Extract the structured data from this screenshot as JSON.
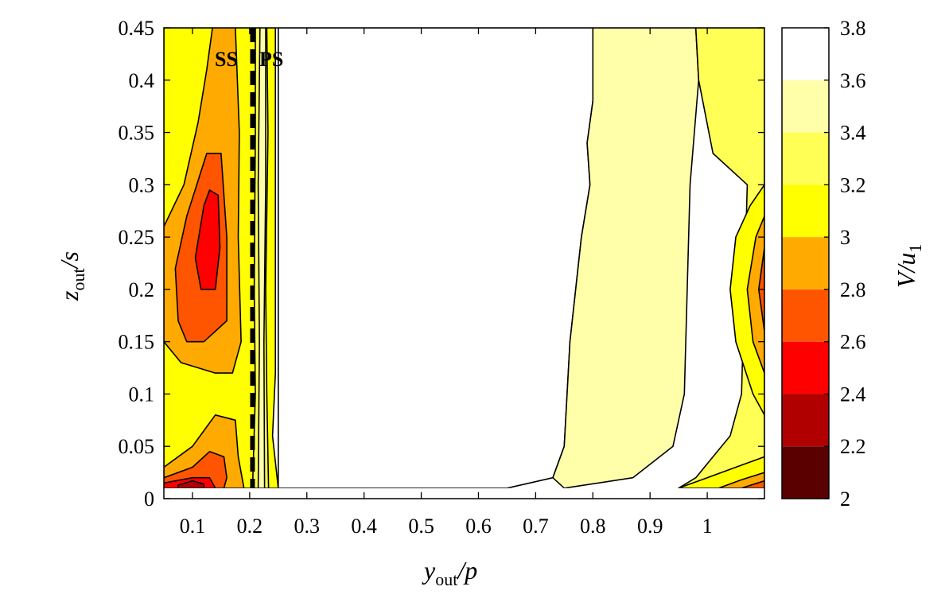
{
  "chart_data": {
    "type": "heatmap",
    "subtype": "filled-contour",
    "title": "",
    "xlabel": {
      "main": "y",
      "sub": "out",
      "rest": "/p"
    },
    "ylabel": {
      "main": "z",
      "sub": "out",
      "rest": "/s"
    },
    "colorbar_label": {
      "main": "V/u",
      "sub": "1"
    },
    "xlim": [
      0.05,
      1.1
    ],
    "ylim": [
      0,
      0.45
    ],
    "x_ticks": [
      "0.1",
      "0.2",
      "0.3",
      "0.4",
      "0.5",
      "0.6",
      "0.7",
      "0.8",
      "0.9",
      "1"
    ],
    "y_ticks": [
      "0",
      "0.05",
      "0.1",
      "0.15",
      "0.2",
      "0.25",
      "0.3",
      "0.35",
      "0.4",
      "0.45"
    ],
    "colorbar_ticks": [
      "2",
      "2.2",
      "2.4",
      "2.6",
      "2.8",
      "3",
      "3.2",
      "3.4",
      "3.6",
      "3.8"
    ],
    "levels": [
      {
        "range": [
          2.0,
          2.2
        ],
        "color": "#5a0000"
      },
      {
        "range": [
          2.2,
          2.4
        ],
        "color": "#b00000"
      },
      {
        "range": [
          2.4,
          2.6
        ],
        "color": "#ff0000"
      },
      {
        "range": [
          2.6,
          2.8
        ],
        "color": "#ff5500"
      },
      {
        "range": [
          2.8,
          3.0
        ],
        "color": "#ffaa00"
      },
      {
        "range": [
          3.0,
          3.2
        ],
        "color": "#ffff00"
      },
      {
        "range": [
          3.2,
          3.4
        ],
        "color": "#ffff55"
      },
      {
        "range": [
          3.4,
          3.6
        ],
        "color": "#ffffaa"
      },
      {
        "range": [
          3.6,
          3.8
        ],
        "color": "#ffffff"
      }
    ],
    "annotations": [
      "SS",
      "PS"
    ],
    "dashed_line": {
      "x": 0.205,
      "style": "dashed"
    },
    "regions": [
      {
        "level": 3.0,
        "points": [
          [
            0.05,
            0.45
          ],
          [
            0.245,
            0.45
          ],
          [
            0.245,
            0.12
          ],
          [
            0.24,
            0.06
          ],
          [
            0.25,
            0.01
          ],
          [
            0.05,
            0.01
          ]
        ]
      },
      {
        "level": 3.2,
        "points": [
          [
            0.21,
            0.45
          ],
          [
            0.23,
            0.45
          ],
          [
            0.232,
            0.35
          ],
          [
            0.228,
            0.2
          ],
          [
            0.23,
            0.1
          ],
          [
            0.233,
            0.01
          ],
          [
            0.205,
            0.01
          ],
          [
            0.21,
            0.1
          ],
          [
            0.208,
            0.2
          ],
          [
            0.21,
            0.35
          ]
        ]
      },
      {
        "level": 3.4,
        "points": [
          [
            0.218,
            0.45
          ],
          [
            0.228,
            0.45
          ],
          [
            0.228,
            0.3
          ],
          [
            0.225,
            0.15
          ],
          [
            0.226,
            0.01
          ],
          [
            0.215,
            0.01
          ],
          [
            0.217,
            0.15
          ],
          [
            0.215,
            0.3
          ]
        ]
      },
      {
        "level": 2.8,
        "points": [
          [
            0.135,
            0.45
          ],
          [
            0.175,
            0.45
          ],
          [
            0.182,
            0.35
          ],
          [
            0.18,
            0.25
          ],
          [
            0.185,
            0.15
          ],
          [
            0.17,
            0.12
          ],
          [
            0.14,
            0.12
          ],
          [
            0.08,
            0.13
          ],
          [
            0.05,
            0.15
          ],
          [
            0.05,
            0.26
          ],
          [
            0.085,
            0.3
          ],
          [
            0.11,
            0.36
          ],
          [
            0.125,
            0.41
          ]
        ]
      },
      {
        "level": 2.6,
        "points": [
          [
            0.125,
            0.33
          ],
          [
            0.15,
            0.33
          ],
          [
            0.16,
            0.25
          ],
          [
            0.16,
            0.17
          ],
          [
            0.12,
            0.15
          ],
          [
            0.09,
            0.15
          ],
          [
            0.075,
            0.17
          ],
          [
            0.07,
            0.22
          ],
          [
            0.09,
            0.27
          ]
        ]
      },
      {
        "level": 2.4,
        "points": [
          [
            0.13,
            0.295
          ],
          [
            0.145,
            0.29
          ],
          [
            0.148,
            0.24
          ],
          [
            0.14,
            0.2
          ],
          [
            0.115,
            0.2
          ],
          [
            0.105,
            0.23
          ],
          [
            0.12,
            0.28
          ]
        ]
      },
      {
        "level": 2.8,
        "points": [
          [
            0.05,
            0.03
          ],
          [
            0.1,
            0.05
          ],
          [
            0.14,
            0.08
          ],
          [
            0.175,
            0.075
          ],
          [
            0.18,
            0.04
          ],
          [
            0.19,
            0.01
          ],
          [
            0.05,
            0.01
          ]
        ]
      },
      {
        "level": 2.6,
        "points": [
          [
            0.05,
            0.02
          ],
          [
            0.1,
            0.03
          ],
          [
            0.13,
            0.045
          ],
          [
            0.155,
            0.04
          ],
          [
            0.16,
            0.02
          ],
          [
            0.155,
            0.01
          ],
          [
            0.05,
            0.01
          ]
        ]
      },
      {
        "level": 2.4,
        "points": [
          [
            0.05,
            0.015
          ],
          [
            0.1,
            0.02
          ],
          [
            0.13,
            0.02
          ],
          [
            0.14,
            0.01
          ],
          [
            0.05,
            0.01
          ]
        ]
      },
      {
        "level": 2.2,
        "points": [
          [
            0.075,
            0.013
          ],
          [
            0.1,
            0.017
          ],
          [
            0.12,
            0.014
          ],
          [
            0.12,
            0.01
          ],
          [
            0.075,
            0.01
          ]
        ]
      },
      {
        "level": 3.6,
        "points": [
          [
            0.25,
            0.45
          ],
          [
            0.8,
            0.45
          ],
          [
            0.8,
            0.38
          ],
          [
            0.79,
            0.34
          ],
          [
            0.795,
            0.3
          ],
          [
            0.78,
            0.25
          ],
          [
            0.77,
            0.2
          ],
          [
            0.76,
            0.15
          ],
          [
            0.755,
            0.1
          ],
          [
            0.75,
            0.05
          ],
          [
            0.73,
            0.02
          ],
          [
            0.65,
            0.01
          ],
          [
            0.25,
            0.01
          ]
        ]
      },
      {
        "level": 3.4,
        "points": [
          [
            0.8,
            0.45
          ],
          [
            0.98,
            0.45
          ],
          [
            0.985,
            0.4
          ],
          [
            0.97,
            0.3
          ],
          [
            0.965,
            0.2
          ],
          [
            0.96,
            0.1
          ],
          [
            0.94,
            0.05
          ],
          [
            0.87,
            0.02
          ],
          [
            0.75,
            0.01
          ],
          [
            0.73,
            0.02
          ],
          [
            0.75,
            0.05
          ],
          [
            0.755,
            0.1
          ],
          [
            0.76,
            0.15
          ],
          [
            0.77,
            0.2
          ],
          [
            0.78,
            0.25
          ],
          [
            0.795,
            0.3
          ],
          [
            0.79,
            0.34
          ],
          [
            0.8,
            0.38
          ]
        ]
      },
      {
        "level": 3.2,
        "points": [
          [
            0.98,
            0.45
          ],
          [
            1.1,
            0.45
          ],
          [
            1.1,
            0.01
          ],
          [
            0.95,
            0.01
          ],
          [
            0.98,
            0.02
          ],
          [
            1.04,
            0.06
          ],
          [
            1.06,
            0.1
          ],
          [
            1.065,
            0.2
          ],
          [
            1.07,
            0.3
          ],
          [
            1.01,
            0.33
          ],
          [
            0.985,
            0.4
          ]
        ]
      },
      {
        "level": 3.0,
        "points": [
          [
            1.1,
            0.3
          ],
          [
            1.075,
            0.28
          ],
          [
            1.05,
            0.25
          ],
          [
            1.04,
            0.2
          ],
          [
            1.05,
            0.15
          ],
          [
            1.08,
            0.1
          ],
          [
            1.1,
            0.08
          ]
        ]
      },
      {
        "level": 2.8,
        "points": [
          [
            1.1,
            0.27
          ],
          [
            1.085,
            0.25
          ],
          [
            1.07,
            0.2
          ],
          [
            1.08,
            0.15
          ],
          [
            1.1,
            0.12
          ]
        ]
      },
      {
        "level": 2.6,
        "points": [
          [
            1.1,
            0.24
          ],
          [
            1.09,
            0.2
          ],
          [
            1.1,
            0.16
          ]
        ]
      },
      {
        "level": 3.0,
        "points": [
          [
            0.95,
            0.01
          ],
          [
            1.1,
            0.01
          ],
          [
            1.1,
            0.04
          ],
          [
            1.05,
            0.03
          ],
          [
            1.0,
            0.02
          ]
        ]
      },
      {
        "level": 2.8,
        "points": [
          [
            1.02,
            0.01
          ],
          [
            1.1,
            0.01
          ],
          [
            1.1,
            0.025
          ],
          [
            1.06,
            0.018
          ]
        ]
      },
      {
        "level": 2.6,
        "points": [
          [
            1.06,
            0.01
          ],
          [
            1.1,
            0.01
          ],
          [
            1.1,
            0.017
          ]
        ]
      }
    ]
  }
}
